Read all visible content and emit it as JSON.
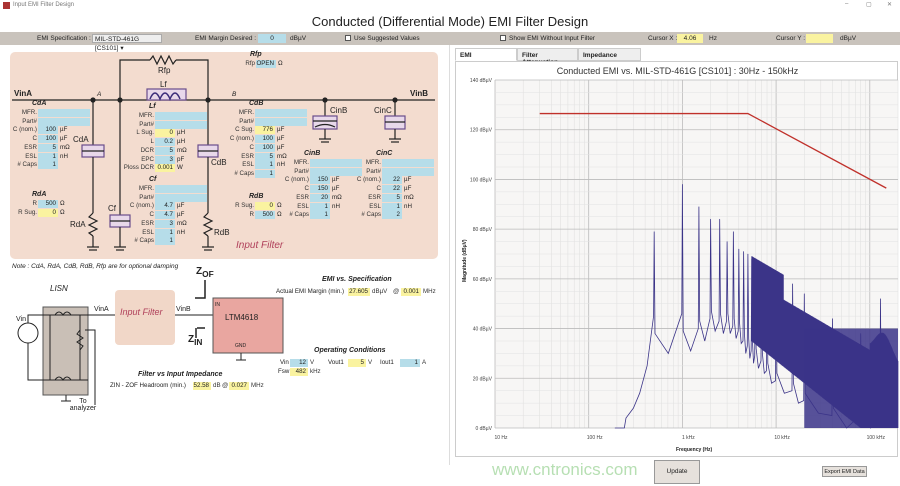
{
  "window": {
    "title": "Input EMI Filter Design",
    "controls": [
      "–",
      "▢",
      "✕"
    ]
  },
  "app_title": "Conducted (Differential Mode) EMI Filter Design",
  "toolbar": {
    "emi_spec_label": "EMI Specification :",
    "emi_spec_value": "MIL-STD-461G [CS101]",
    "margin_label": "EMI Margin Desired :",
    "margin_value": "0",
    "margin_unit": "dBµV",
    "use_suggested": "Use Suggested Values",
    "show_without_filter": "Show EMI Without Input Filter",
    "cursor_x_label": "Cursor X :",
    "cursor_x_value": "4.06",
    "cursor_x_unit": "Hz",
    "cursor_y_label": "Cursor Y :",
    "cursor_y_value": "",
    "cursor_y_unit": "dBµV"
  },
  "schematic": {
    "vina": "VinA",
    "vinb": "VinB",
    "node_a": "A",
    "node_b": "B",
    "rfp": "Rfp",
    "lf": "Lf",
    "cda": "CdA",
    "rda": "RdA",
    "cf": "Cf",
    "cdb": "CdB",
    "rdb": "RdB",
    "cinb": "CinB",
    "cinc": "CinC",
    "panel_label": "Input Filter"
  },
  "groups": {
    "rfp": {
      "title": "Rfp",
      "rows": [
        {
          "label": "Rfp",
          "value": "OPEN",
          "unit": "Ω"
        }
      ]
    },
    "cda": {
      "title": "CdA",
      "rows": [
        {
          "label": "MFR.",
          "value": "",
          "wide": true
        },
        {
          "label": "Part#",
          "value": "",
          "wide": true
        },
        {
          "label": "C (nom.)",
          "value": "100",
          "unit": "µF"
        },
        {
          "label": "C",
          "value": "100",
          "unit": "µF"
        },
        {
          "label": "ESR",
          "value": "5",
          "unit": "mΩ"
        },
        {
          "label": "ESL",
          "value": "1",
          "unit": "nH"
        },
        {
          "label": "# Caps",
          "value": "1"
        }
      ]
    },
    "rda": {
      "title": "RdA",
      "rows": [
        {
          "label": "R",
          "value": "500",
          "unit": "Ω"
        },
        {
          "label": "R Sug.",
          "value": "0",
          "unit": "Ω",
          "highlight": true
        }
      ]
    },
    "lf": {
      "title": "Lf",
      "rows": [
        {
          "label": "MFR.",
          "value": "",
          "wide": true
        },
        {
          "label": "Part#",
          "value": "",
          "wide": true
        },
        {
          "label": "L Sug.",
          "value": "0",
          "unit": "µH",
          "highlight": true
        },
        {
          "label": "L",
          "value": "0.2",
          "unit": "µH"
        },
        {
          "label": "DCR",
          "value": "5",
          "unit": "mΩ"
        },
        {
          "label": "EPC",
          "value": "3",
          "unit": "pF"
        },
        {
          "label": "Ploss DCR",
          "value": "0.001",
          "unit": "W",
          "highlight": true
        }
      ]
    },
    "cf": {
      "title": "Cf",
      "rows": [
        {
          "label": "MFR.",
          "value": "",
          "wide": true
        },
        {
          "label": "Part#",
          "value": "",
          "wide": true
        },
        {
          "label": "C (nom.)",
          "value": "4.7",
          "unit": "µF"
        },
        {
          "label": "C",
          "value": "4.7",
          "unit": "µF"
        },
        {
          "label": "ESR",
          "value": "3",
          "unit": "mΩ"
        },
        {
          "label": "ESL",
          "value": "1",
          "unit": "nH"
        },
        {
          "label": "# Caps",
          "value": "1"
        }
      ]
    },
    "cdb": {
      "title": "CdB",
      "rows": [
        {
          "label": "MFR.",
          "value": "",
          "wide": true
        },
        {
          "label": "Part#",
          "value": "",
          "wide": true
        },
        {
          "label": "C Sug.",
          "value": "776",
          "unit": "µF",
          "highlight": true
        },
        {
          "label": "C (nom.)",
          "value": "100",
          "unit": "µF"
        },
        {
          "label": "C",
          "value": "100",
          "unit": "µF"
        },
        {
          "label": "ESR",
          "value": "5",
          "unit": "mΩ"
        },
        {
          "label": "ESL",
          "value": "1",
          "unit": "nH"
        },
        {
          "label": "# Caps",
          "value": "1"
        }
      ]
    },
    "rdb": {
      "title": "RdB",
      "rows": [
        {
          "label": "R Sug.",
          "value": "0",
          "unit": "Ω",
          "highlight": true
        },
        {
          "label": "R",
          "value": "500",
          "unit": "Ω"
        }
      ]
    },
    "cinb": {
      "title": "CinB",
      "rows": [
        {
          "label": "MFR.",
          "value": "",
          "wide": true
        },
        {
          "label": "Part#",
          "value": "",
          "wide": true
        },
        {
          "label": "C (nom.)",
          "value": "150",
          "unit": "µF"
        },
        {
          "label": "C",
          "value": "150",
          "unit": "µF"
        },
        {
          "label": "ESR",
          "value": "20",
          "unit": "mΩ"
        },
        {
          "label": "ESL",
          "value": "1",
          "unit": "nH"
        },
        {
          "label": "# Caps",
          "value": "1"
        }
      ]
    },
    "cinc": {
      "title": "CinC",
      "rows": [
        {
          "label": "MFR.",
          "value": "",
          "wide": true
        },
        {
          "label": "Part#",
          "value": "",
          "wide": true
        },
        {
          "label": "C (nom.)",
          "value": "22",
          "unit": "µF"
        },
        {
          "label": "C",
          "value": "22",
          "unit": "µF"
        },
        {
          "label": "ESR",
          "value": "5",
          "unit": "mΩ"
        },
        {
          "label": "ESL",
          "value": "1",
          "unit": "nH"
        },
        {
          "label": "# Caps",
          "value": "2"
        }
      ]
    }
  },
  "note": "Note : CdA, RdA, CdB, RdB, Rfp are for optional damping",
  "system": {
    "lisn": "LISN",
    "vin": "Vin",
    "vina": "VinA",
    "vinb": "VinB",
    "input_filter": "Input Filter",
    "zof": "Z",
    "zof_sub": "OF",
    "zin": "Z",
    "zin_sub": "IN",
    "device": "LTM4618",
    "pin_in": "IN",
    "pin_gnd": "GND",
    "to_analyzer": "To analyzer"
  },
  "emi_vs_spec": {
    "title": "EMI vs. Specification",
    "label": "Actual EMI Margin (min.)",
    "value": "27.605",
    "unit": "dBµV",
    "at": "@",
    "freq": "0.001",
    "freq_unit": "MHz"
  },
  "operating": {
    "title": "Operating Conditions",
    "vin_label": "Vin",
    "vin": "12",
    "vin_unit": "V",
    "vout_label": "Vout1",
    "vout": "5",
    "vout_unit": "V",
    "iout_label": "Iout1",
    "iout": "1",
    "iout_unit": "A",
    "fsw_label": "Fsw",
    "fsw": "482",
    "fsw_unit": "kHz"
  },
  "impedance": {
    "title": "Filter vs Input Impedance",
    "label": "ZIN - ZOF Headroom (min.)",
    "value": "52.58",
    "unit": "dB",
    "at": "@",
    "freq": "0.027",
    "freq_unit": "MHz"
  },
  "tabs": [
    {
      "label": "EMI",
      "active": true
    },
    {
      "label": "Filter Attenuation"
    },
    {
      "label": "Impedance"
    }
  ],
  "buttons": {
    "update": "Update",
    "export": "Export EMI Data"
  },
  "watermark": "www.cntronics.com",
  "chart_data": {
    "type": "line",
    "title": "Conducted EMI vs. MIL-STD-461G [CS101] : 30Hz - 150kHz",
    "xlabel": "Frequency (Hz)",
    "ylabel": "Magnitude (dBµV)",
    "xscale": "log",
    "xlim": [
      10,
      200000
    ],
    "ylim": [
      0,
      140
    ],
    "xticks": [
      "10 Hz",
      "100 Hz",
      "1 kHz",
      "10 kHz",
      "100 kHz"
    ],
    "yticks": [
      "0 dBµV",
      "20 dBµV",
      "40 dBµV",
      "60 dBµV",
      "80 dBµV",
      "100 dBµV",
      "120 dBµV",
      "140 dBµV"
    ],
    "grid": true,
    "colors": {
      "limit": "#c0312b",
      "emi": "#3b3488"
    },
    "series": [
      {
        "role": "limit",
        "x": [
          30,
          5000,
          150000
        ],
        "y": [
          126.5,
          126.5,
          96.5
        ]
      },
      {
        "role": "emi",
        "peaks_x": [
          500,
          1000,
          1500,
          2000,
          2500,
          3000,
          3500,
          4000,
          4500,
          5000,
          5500,
          6000,
          7000,
          8000,
          10000,
          15000,
          20000,
          40000,
          80000,
          130000
        ],
        "peaks_y": [
          79,
          98,
          89,
          84,
          84,
          75,
          79,
          72,
          71,
          70,
          68,
          66,
          64,
          62,
          60,
          58,
          54,
          44,
          38,
          52
        ],
        "floor_y": [
          null,
          31,
          35,
          39,
          38,
          38,
          36,
          34,
          30,
          28,
          26,
          24,
          22,
          18,
          14,
          10,
          6,
          0,
          0,
          0
        ]
      }
    ]
  }
}
